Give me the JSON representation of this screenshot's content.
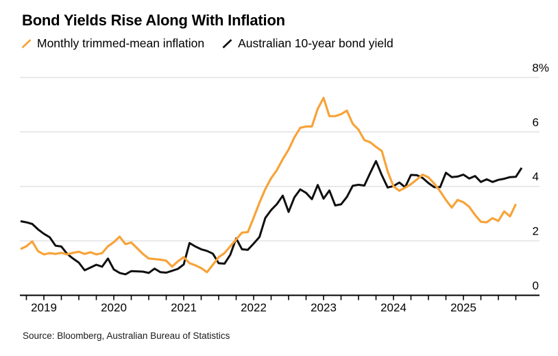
{
  "header": {
    "title": "Bond Yields Rise Along With Inflation"
  },
  "legend": [
    {
      "label": "Monthly trimmed-mean inflation",
      "color": "#f7a339",
      "icon": "slash-icon"
    },
    {
      "label": "Australian 10-year bond yield",
      "color": "#0f0f0f",
      "icon": "slash-icon"
    }
  ],
  "source": "Source: Bloomberg, Australian Bureau of Statistics",
  "colors": {
    "inflation_line": "#f7a339",
    "yield_line": "#0f0f0f",
    "gridline": "#e2e2e2",
    "axis": "#000000",
    "text": "#000000",
    "background": "#ffffff"
  },
  "chart_data": {
    "type": "line",
    "title": "Bond Yields Rise Along With Inflation",
    "xlabel": "",
    "ylabel": "",
    "y_unit": "%",
    "ylim": [
      0,
      8
    ],
    "yticks": [
      0,
      2,
      4,
      6,
      8
    ],
    "ytick_labels": [
      "0",
      "2",
      "4",
      "6",
      "8%"
    ],
    "x_tick_years": [
      "2019",
      "2020",
      "2021",
      "2022",
      "2023",
      "2024",
      "2025"
    ],
    "x_resolution": "monthly",
    "x_first_point": "Sep 2018",
    "grid": "horizontal-only",
    "legend_position": "top-left",
    "series": [
      {
        "name": "Australian 10-year bond yield",
        "color": "#0f0f0f",
        "values": [
          2.72,
          2.68,
          2.62,
          2.42,
          2.26,
          2.13,
          1.82,
          1.79,
          1.52,
          1.35,
          1.2,
          0.92,
          1.02,
          1.12,
          1.05,
          1.35,
          0.95,
          0.82,
          0.77,
          0.89,
          0.88,
          0.87,
          0.82,
          0.98,
          0.85,
          0.83,
          0.9,
          0.97,
          1.13,
          1.92,
          1.79,
          1.69,
          1.63,
          1.53,
          1.18,
          1.16,
          1.49,
          2.09,
          1.69,
          1.67,
          1.9,
          2.14,
          2.84,
          3.13,
          3.35,
          3.66,
          3.06,
          3.6,
          3.89,
          3.76,
          3.53,
          4.05,
          3.55,
          3.85,
          3.3,
          3.34,
          3.61,
          4.02,
          4.06,
          4.03,
          4.49,
          4.93,
          4.41,
          3.96,
          4.01,
          4.14,
          3.97,
          4.42,
          4.41,
          4.31,
          4.12,
          3.97,
          3.97,
          4.5,
          4.34,
          4.36,
          4.43,
          4.29,
          4.38,
          4.16,
          4.26,
          4.16,
          4.24,
          4.28,
          4.34,
          4.35,
          4.68
        ]
      },
      {
        "name": "Monthly trimmed-mean inflation",
        "color": "#f7a339",
        "values": [
          1.7,
          1.8,
          1.98,
          1.62,
          1.5,
          1.55,
          1.52,
          1.56,
          1.5,
          1.56,
          1.6,
          1.52,
          1.58,
          1.5,
          1.55,
          1.8,
          1.95,
          2.15,
          1.88,
          1.94,
          1.73,
          1.52,
          1.35,
          1.33,
          1.31,
          1.27,
          1.05,
          1.25,
          1.4,
          1.18,
          1.1,
          1.0,
          0.85,
          1.12,
          1.4,
          1.55,
          1.8,
          2.05,
          2.3,
          2.32,
          2.85,
          3.4,
          3.9,
          4.3,
          4.6,
          5.0,
          5.35,
          5.8,
          6.15,
          6.2,
          6.2,
          6.85,
          7.25,
          6.58,
          6.58,
          6.65,
          6.78,
          6.3,
          6.08,
          5.7,
          5.62,
          5.45,
          5.3,
          4.55,
          4.0,
          3.84,
          3.95,
          4.08,
          4.25,
          4.43,
          4.33,
          4.1,
          3.82,
          3.5,
          3.22,
          3.5,
          3.42,
          3.25,
          2.95,
          2.7,
          2.68,
          2.83,
          2.73,
          3.08,
          2.9,
          3.35
        ]
      }
    ]
  }
}
